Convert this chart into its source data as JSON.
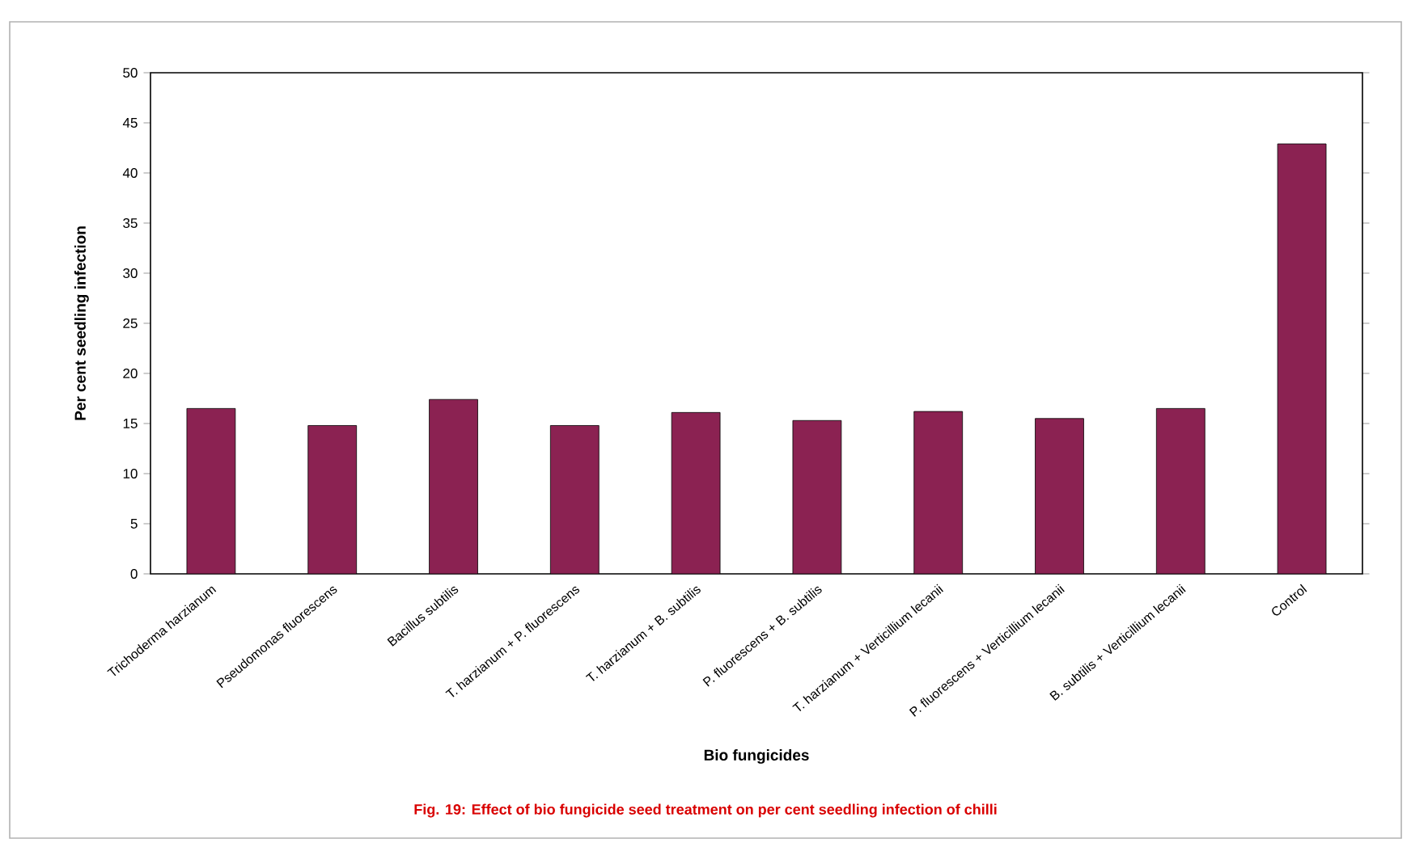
{
  "chart_data": {
    "type": "bar",
    "xlabel": "Bio fungicides",
    "ylabel": "Per cent seedling  infection",
    "categories": [
      "Trichoderma harzianum",
      "Pseudomonas fluorescens",
      "Bacillus subtilis",
      "T. harzianum + P. fluorescens",
      "T. harzianum + B. subtilis",
      "P. fluorescens + B. subtilis",
      "T. harzianum + Verticillium lecanii",
      "P. fluorescens + Verticillium lecanii",
      "B. subtilis + Verticillium lecanii",
      "Control"
    ],
    "values": [
      16.5,
      14.8,
      17.4,
      14.8,
      16.1,
      15.3,
      16.2,
      15.5,
      16.5,
      42.9
    ],
    "color": "#8b2252",
    "ylim": [
      0,
      50
    ],
    "yticks": [
      0,
      5,
      10,
      15,
      20,
      25,
      30,
      35,
      40,
      45,
      50
    ],
    "grid": false,
    "annotations": [
      "Fig.  19: Effect of bio fungicide  seed treatment on per cent seedling infection of chilli"
    ]
  }
}
